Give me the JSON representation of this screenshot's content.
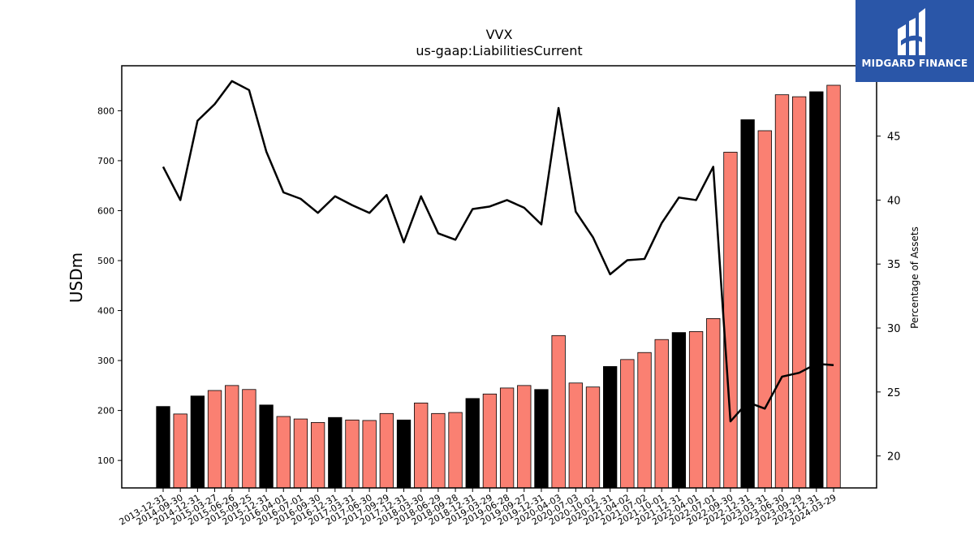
{
  "brand": {
    "name": "MIDGARD FINANCE",
    "bg": "#2a56a8"
  },
  "chart_data": {
    "type": "bar",
    "title": "VVX",
    "subtitle": "us-gaap:LiabilitiesCurrent",
    "ylabel": "USDm",
    "y2label": "Percentage of Assets",
    "ylim": [
      45,
      890
    ],
    "y2lim": [
      17.5,
      50.5
    ],
    "yticks": [
      100,
      200,
      300,
      400,
      500,
      600,
      700,
      800
    ],
    "y2ticks": [
      20,
      25,
      30,
      35,
      40,
      45
    ],
    "categories": [
      "2013-12-31",
      "2014-09-30",
      "2014-12-31",
      "2015-03-27",
      "2015-06-26",
      "2015-09-25",
      "2015-12-31",
      "2016-04-01",
      "2016-07-01",
      "2016-09-30",
      "2016-12-31",
      "2017-03-31",
      "2017-06-30",
      "2017-09-29",
      "2017-12-31",
      "2018-03-30",
      "2018-06-29",
      "2018-09-28",
      "2018-12-31",
      "2019-03-29",
      "2019-06-28",
      "2019-09-27",
      "2019-12-31",
      "2020-04-03",
      "2020-07-03",
      "2020-10-02",
      "2020-12-31",
      "2021-04-02",
      "2021-07-02",
      "2021-10-01",
      "2021-12-31",
      "2022-04-01",
      "2022-07-01",
      "2022-09-30",
      "2022-12-31",
      "2023-03-31",
      "2023-06-30",
      "2023-09-29",
      "2023-12-31",
      "2024-03-29"
    ],
    "series": [
      {
        "kind": "bar",
        "values": [
          208,
          193,
          229,
          240,
          250,
          242,
          211,
          188,
          183,
          176,
          186,
          181,
          180,
          194,
          181,
          215,
          194,
          196,
          224,
          233,
          245,
          250,
          242,
          350,
          255,
          247,
          288,
          302,
          316,
          342,
          356,
          358,
          384,
          717,
          782,
          760,
          832,
          828,
          838,
          851
        ],
        "highlight": [
          true,
          false,
          true,
          false,
          false,
          false,
          true,
          false,
          false,
          false,
          true,
          false,
          false,
          false,
          true,
          false,
          false,
          false,
          true,
          false,
          false,
          false,
          true,
          false,
          false,
          false,
          true,
          false,
          false,
          false,
          true,
          false,
          false,
          false,
          true,
          false,
          false,
          false,
          true,
          false
        ]
      },
      {
        "kind": "line",
        "axis": "right",
        "values": [
          42.6,
          40.0,
          46.2,
          47.5,
          49.3,
          48.6,
          43.8,
          40.6,
          40.1,
          39.0,
          40.3,
          39.6,
          39.0,
          40.4,
          36.7,
          40.3,
          37.4,
          36.9,
          39.3,
          39.5,
          40.0,
          39.4,
          38.1,
          47.2,
          39.1,
          37.1,
          34.2,
          35.3,
          35.4,
          38.2,
          40.2,
          40.0,
          42.6,
          22.7,
          24.2,
          23.7,
          26.2,
          26.5,
          27.2,
          27.1
        ]
      }
    ],
    "colors": {
      "bar": "#fa8072",
      "bar_highlight": "#000000",
      "line": "#000000"
    },
    "grid": false,
    "legend": "none"
  }
}
